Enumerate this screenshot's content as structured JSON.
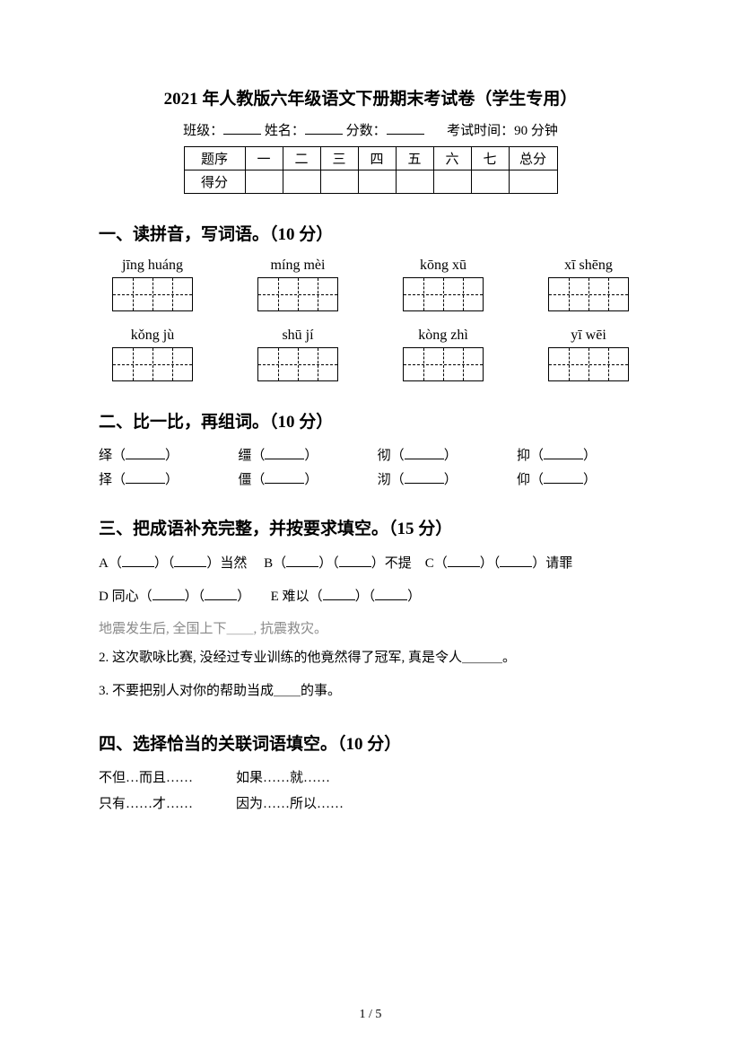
{
  "title": "2021 年人教版六年级语文下册期末考试卷（学生专用）",
  "info": {
    "class_label": "班级：",
    "name_label": "姓名：",
    "score_label": "分数：",
    "exam_time": "考试时间：90 分钟"
  },
  "score_table": {
    "row1_label": "题序",
    "row2_label": "得分",
    "cols": [
      "一",
      "二",
      "三",
      "四",
      "五",
      "六",
      "七",
      "总分"
    ]
  },
  "section1": {
    "heading": "一、读拼音，写词语。（10 分）",
    "row1": [
      "jīng huáng",
      "míng mèi",
      "kōng xū",
      "xī shēng"
    ],
    "row2": [
      "kǒng jù",
      "shū jí",
      "kòng zhì",
      "yī wēi"
    ]
  },
  "section2": {
    "heading": "二、比一比，再组词。（10 分）",
    "row1": [
      "绎",
      "缰",
      "彻",
      "抑"
    ],
    "row2": [
      "择",
      "僵",
      "沏",
      "仰"
    ]
  },
  "section3": {
    "heading": "三、把成语补充完整，并按要求填空。（15 分）",
    "lineA_prefix": "A",
    "lineA_suffix": "当然",
    "lineB_prefix": "B",
    "lineB_suffix": "不提",
    "lineC_prefix": "C",
    "lineC_suffix": "请罪",
    "lineD_prefix": "D 同心",
    "lineE_prefix": "E 难以",
    "gray_line": "地震发生后, 全国上下＿＿, 抗震救灾。",
    "q2": "2. 这次歌咏比赛, 没经过专业训练的他竟然得了冠军, 真是令人＿＿＿。",
    "q3": "3. 不要把别人对你的帮助当成＿＿的事。"
  },
  "section4": {
    "heading": "四、选择恰当的关联词语填空。（10 分）",
    "row1": [
      "不但…而且……",
      "如果……就……"
    ],
    "row2": [
      "只有……才……",
      "因为……所以……"
    ]
  },
  "page_num": "1  /  5"
}
